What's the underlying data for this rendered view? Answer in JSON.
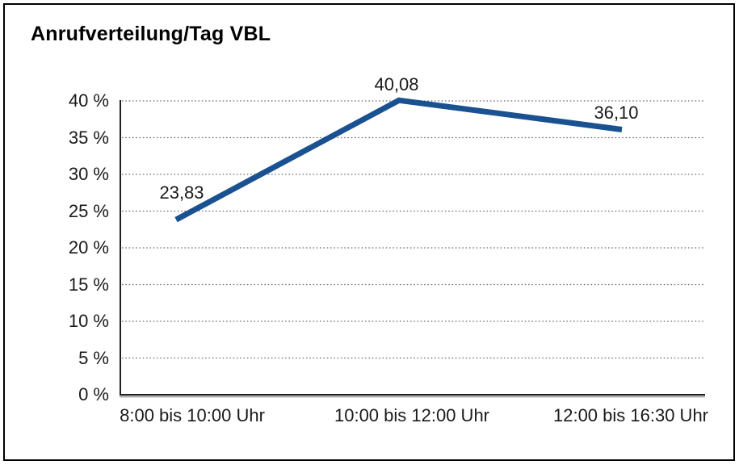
{
  "chart_data": {
    "type": "line",
    "title": "Anrufverteilung/Tag VBL",
    "categories": [
      "8:00 bis 10:00 Uhr",
      "10:00 bis 12:00 Uhr",
      "12:00 bis 16:30 Uhr"
    ],
    "values": [
      23.83,
      40.08,
      36.1
    ],
    "value_labels": [
      "23,83",
      "40,08",
      "36,10"
    ],
    "y_ticks": [
      {
        "value": 40,
        "label": "40 %"
      },
      {
        "value": 35,
        "label": "35 %"
      },
      {
        "value": 30,
        "label": "30 %"
      },
      {
        "value": 25,
        "label": "25 %"
      },
      {
        "value": 20,
        "label": "20 %"
      },
      {
        "value": 15,
        "label": "15 %"
      },
      {
        "value": 10,
        "label": "10 %"
      },
      {
        "value": 5,
        "label": "5 %"
      },
      {
        "value": 0,
        "label": "0 %"
      }
    ],
    "ylim": [
      0,
      40
    ],
    "xlabel": "",
    "ylabel": "",
    "grid": "dotted-horizontal",
    "legend": "none",
    "colors": {
      "line": "#1A5191",
      "text": "#1a1a1a",
      "gridline": "#6e6e6e",
      "axis": "#1f1f1f",
      "axis_shadow": "#8f8f8f",
      "frame": "#000000",
      "background": "#ffffff"
    }
  }
}
